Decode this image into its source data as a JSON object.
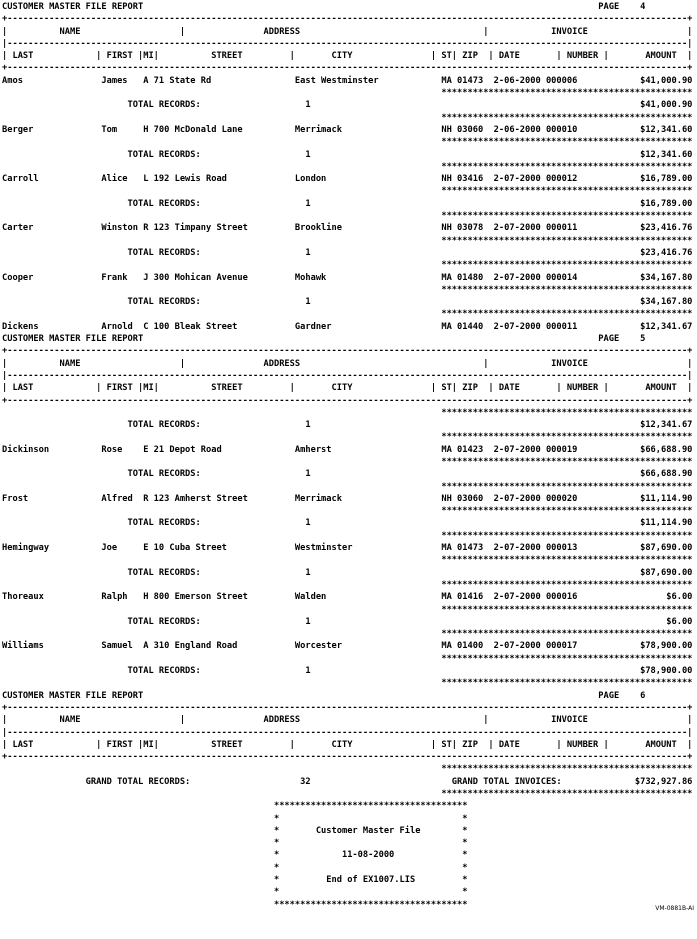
{
  "report": {
    "title": "CUSTOMER MASTER FILE REPORT",
    "page_word": "PAGE",
    "corner_label": "VM-0881B-AI",
    "sections": {
      "name": "NAME",
      "address": "ADDRESS",
      "invoice": "INVOICE"
    },
    "columns": {
      "last": "LAST",
      "first": "FIRST",
      "mi": "MI",
      "street": "STREET",
      "city": "CITY",
      "st": "ST",
      "zip": "ZIP",
      "date": "DATE",
      "number": "NUMBER",
      "amount": "AMOUNT"
    },
    "labels": {
      "total_records": "TOTAL RECORDS:",
      "grand_total_records": "GRAND TOTAL RECORDS:",
      "grand_total_invoices": "GRAND TOTAL INVOICES:"
    },
    "grand_totals": {
      "records": "32",
      "invoices": "$732,927.86"
    },
    "end_box": {
      "lines": [
        "Customer Master File",
        "11-08-2000",
        "End of EX1007.LIS"
      ]
    },
    "pages": [
      {
        "page": "4",
        "rows": [
          {
            "type": "record",
            "last": "Amos",
            "first": "James",
            "mi": "A",
            "street": "71 State Rd",
            "city": "East Westminster",
            "st": "MA",
            "zip": "01473",
            "date": "2-06-2000",
            "number": "000006",
            "amount": "$41,000.90"
          },
          {
            "type": "stars"
          },
          {
            "type": "total",
            "records": "1",
            "amount": "$41,000.90"
          },
          {
            "type": "stars"
          },
          {
            "type": "record",
            "last": "Berger",
            "first": "Tom",
            "mi": "H",
            "street": "700 McDonald Lane",
            "city": "Merrimack",
            "st": "NH",
            "zip": "03060",
            "date": "2-06-2000",
            "number": "000010",
            "amount": "$12,341.60"
          },
          {
            "type": "stars"
          },
          {
            "type": "total",
            "records": "1",
            "amount": "$12,341.60"
          },
          {
            "type": "stars"
          },
          {
            "type": "record",
            "last": "Carroll",
            "first": "Alice",
            "mi": "L",
            "street": "192 Lewis Road",
            "city": "London",
            "st": "NH",
            "zip": "03416",
            "date": "2-07-2000",
            "number": "000012",
            "amount": "$16,789.00"
          },
          {
            "type": "stars"
          },
          {
            "type": "total",
            "records": "1",
            "amount": "$16,789.00"
          },
          {
            "type": "stars"
          },
          {
            "type": "record",
            "last": "Carter",
            "first": "Winston",
            "mi": "R",
            "street": "123 Timpany Street",
            "city": "Brookline",
            "st": "NH",
            "zip": "03078",
            "date": "2-07-2000",
            "number": "000011",
            "amount": "$23,416.76"
          },
          {
            "type": "stars"
          },
          {
            "type": "total",
            "records": "1",
            "amount": "$23,416.76"
          },
          {
            "type": "stars"
          },
          {
            "type": "record",
            "last": "Cooper",
            "first": "Frank",
            "mi": "J",
            "street": "300 Mohican Avenue",
            "city": "Mohawk",
            "st": "MA",
            "zip": "01480",
            "date": "2-07-2000",
            "number": "000014",
            "amount": "$34,167.80"
          },
          {
            "type": "stars"
          },
          {
            "type": "total",
            "records": "1",
            "amount": "$34,167.80"
          },
          {
            "type": "stars"
          },
          {
            "type": "record",
            "last": "Dickens",
            "first": "Arnold",
            "mi": "C",
            "street": "100 Bleak Street",
            "city": "Gardner",
            "st": "MA",
            "zip": "01440",
            "date": "2-07-2000",
            "number": "000011",
            "amount": "$12,341.67"
          }
        ]
      },
      {
        "page": "5",
        "rows": [
          {
            "type": "stars"
          },
          {
            "type": "total",
            "records": "1",
            "amount": "$12,341.67"
          },
          {
            "type": "stars"
          },
          {
            "type": "record",
            "last": "Dickinson",
            "first": "Rose",
            "mi": "E",
            "street": "21 Depot Road",
            "city": "Amherst",
            "st": "MA",
            "zip": "01423",
            "date": "2-07-2000",
            "number": "000019",
            "amount": "$66,688.90"
          },
          {
            "type": "stars"
          },
          {
            "type": "total",
            "records": "1",
            "amount": "$66,688.90"
          },
          {
            "type": "stars"
          },
          {
            "type": "record",
            "last": "Frost",
            "first": "Alfred",
            "mi": "R",
            "street": "123 Amherst Street",
            "city": "Merrimack",
            "st": "NH",
            "zip": "03060",
            "date": "2-07-2000",
            "number": "000020",
            "amount": "$11,114.90"
          },
          {
            "type": "stars"
          },
          {
            "type": "total",
            "records": "1",
            "amount": "$11,114.90"
          },
          {
            "type": "stars"
          },
          {
            "type": "record",
            "last": "Hemingway",
            "first": "Joe",
            "mi": "E",
            "street": "10 Cuba Street",
            "city": "Westminster",
            "st": "MA",
            "zip": "01473",
            "date": "2-07-2000",
            "number": "000013",
            "amount": "$87,690.00"
          },
          {
            "type": "stars"
          },
          {
            "type": "total",
            "records": "1",
            "amount": "$87,690.00"
          },
          {
            "type": "stars"
          },
          {
            "type": "record",
            "last": "Thoreaux",
            "first": "Ralph",
            "mi": "H",
            "street": "800 Emerson Street",
            "city": "Walden",
            "st": "MA",
            "zip": "01416",
            "date": "2-07-2000",
            "number": "000016",
            "amount": "$6.00"
          },
          {
            "type": "stars"
          },
          {
            "type": "total",
            "records": "1",
            "amount": "$6.00"
          },
          {
            "type": "stars"
          },
          {
            "type": "record",
            "last": "Williams",
            "first": "Samuel",
            "mi": "A",
            "street": "310 England Road",
            "city": "Worcester",
            "st": "MA",
            "zip": "01400",
            "date": "2-07-2000",
            "number": "000017",
            "amount": "$78,900.00"
          },
          {
            "type": "stars"
          },
          {
            "type": "total",
            "records": "1",
            "amount": "$78,900.00"
          },
          {
            "type": "stars"
          }
        ]
      },
      {
        "page": "6",
        "rows": [
          {
            "type": "stars"
          },
          {
            "type": "grand"
          },
          {
            "type": "stars"
          },
          {
            "type": "box"
          }
        ]
      }
    ]
  }
}
